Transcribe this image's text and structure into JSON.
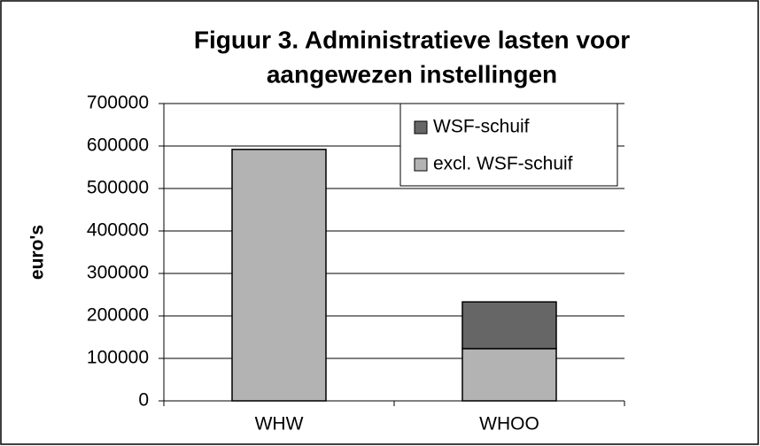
{
  "chart_data": {
    "type": "stacked_bar",
    "title": [
      "Figuur 3. Administratieve lasten voor",
      "aangewezen instellingen"
    ],
    "y_label": "euro's",
    "categories": [
      "WHW",
      "WHOO"
    ],
    "series": [
      {
        "name": "excl. WSF-schuif",
        "color": "#b3b3b3",
        "values": [
          592000,
          123000
        ]
      },
      {
        "name": "WSF-schuif",
        "color": "#666666",
        "values": [
          0,
          110000
        ]
      }
    ],
    "ylim": [
      0,
      700000
    ],
    "yticks": [
      0,
      100000,
      200000,
      300000,
      400000,
      500000,
      600000,
      700000
    ],
    "grid": true,
    "legend": "upper right"
  }
}
